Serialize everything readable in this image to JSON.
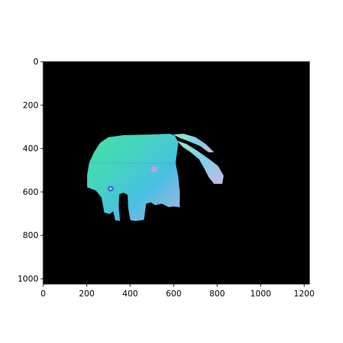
{
  "chart_data": {
    "type": "heatmap",
    "title": "",
    "xlabel": "",
    "ylabel": "",
    "xlim": [
      0,
      1224
    ],
    "ylim": [
      1024,
      0
    ],
    "y_axis_inverted": true,
    "xticks": [
      0,
      200,
      400,
      600,
      800,
      1000,
      1200
    ],
    "yticks": [
      0,
      200,
      400,
      600,
      800,
      1000
    ],
    "xtick_labels": [
      "0",
      "200",
      "400",
      "600",
      "800",
      "1000",
      "1200"
    ],
    "ytick_labels": [
      "0",
      "200",
      "400",
      "600",
      "800",
      "1000"
    ],
    "grid": false,
    "legend": "none",
    "background_color": "#000000",
    "image_content": "surface-normal map of an elephant silhouette on black background",
    "colors": {
      "teal_top": "#3ddba8",
      "mint": "#8ee8c8",
      "cyan_body": "#3dbfe0",
      "lavender_tail": "#b9b3e0",
      "accent_violet": "#7a6cf0"
    },
    "markers": [
      {
        "x": 510,
        "y": 495,
        "color": "#c59cf0"
      },
      {
        "x": 310,
        "y": 585,
        "color": "#4b3cf0"
      }
    ]
  }
}
